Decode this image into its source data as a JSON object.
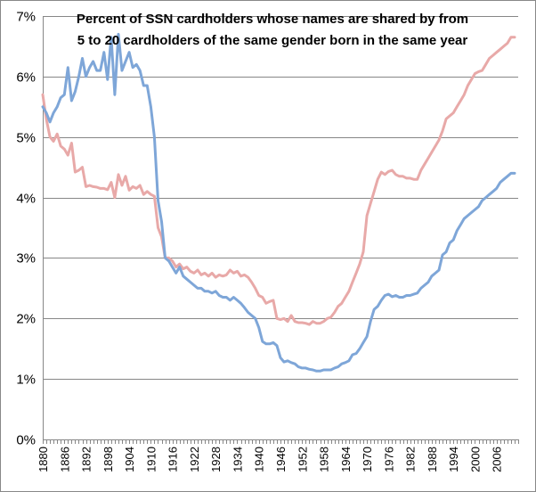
{
  "chart_data": {
    "type": "line",
    "title_lines": [
      "Percent of SSN cardholders whose names are shared by from",
      "5 to 20 cardholders of the same gender born in the same year"
    ],
    "xlabel": "",
    "ylabel": "",
    "xlim": [
      1880,
      2012
    ],
    "ylim": [
      0,
      7
    ],
    "y_ticks": [
      0,
      1,
      2,
      3,
      4,
      5,
      6,
      7
    ],
    "y_tick_labels": [
      "0%",
      "1%",
      "2%",
      "3%",
      "4%",
      "5%",
      "6%",
      "7%"
    ],
    "x_tick_labels": [
      "1880",
      "1886",
      "1892",
      "1898",
      "1904",
      "1910",
      "1916",
      "1922",
      "1928",
      "1934",
      "1940",
      "1946",
      "1952",
      "1958",
      "1964",
      "1970",
      "1976",
      "1982",
      "1988",
      "1994",
      "2000",
      "2006"
    ],
    "grid": true,
    "legend": "none",
    "series": [
      {
        "color": "#e8a9a8",
        "x": [
          1880,
          1881,
          1882,
          1883,
          1884,
          1885,
          1886,
          1887,
          1888,
          1889,
          1890,
          1891,
          1892,
          1893,
          1894,
          1895,
          1896,
          1897,
          1898,
          1899,
          1900,
          1901,
          1902,
          1903,
          1904,
          1905,
          1906,
          1907,
          1908,
          1909,
          1910,
          1911,
          1912,
          1913,
          1914,
          1915,
          1916,
          1917,
          1918,
          1919,
          1920,
          1921,
          1922,
          1923,
          1924,
          1925,
          1926,
          1927,
          1928,
          1929,
          1930,
          1931,
          1932,
          1933,
          1934,
          1935,
          1936,
          1937,
          1938,
          1939,
          1940,
          1941,
          1942,
          1943,
          1944,
          1945,
          1946,
          1947,
          1948,
          1949,
          1950,
          1951,
          1952,
          1953,
          1954,
          1955,
          1956,
          1957,
          1958,
          1959,
          1960,
          1961,
          1962,
          1963,
          1964,
          1965,
          1966,
          1967,
          1968,
          1969,
          1970,
          1971,
          1972,
          1973,
          1974,
          1975,
          1976,
          1977,
          1978,
          1979,
          1980,
          1981,
          1982,
          1983,
          1984,
          1985,
          1986,
          1987,
          1988,
          1989,
          1990,
          1991,
          1992,
          1993,
          1994,
          1995,
          1996,
          1997,
          1998,
          1999,
          2000,
          2001,
          2002,
          2003,
          2004,
          2005,
          2006,
          2007,
          2008,
          2009,
          2010,
          2011
        ],
        "values": [
          5.7,
          5.3,
          5.0,
          4.93,
          5.05,
          4.85,
          4.8,
          4.7,
          4.9,
          4.42,
          4.45,
          4.5,
          4.18,
          4.2,
          4.18,
          4.17,
          4.15,
          4.15,
          4.13,
          4.25,
          4.0,
          4.38,
          4.2,
          4.35,
          4.12,
          4.18,
          4.15,
          4.2,
          4.05,
          4.1,
          4.05,
          4.02,
          3.5,
          3.35,
          3.0,
          3.0,
          2.95,
          2.85,
          2.9,
          2.82,
          2.85,
          2.78,
          2.75,
          2.8,
          2.72,
          2.75,
          2.7,
          2.75,
          2.68,
          2.72,
          2.7,
          2.72,
          2.8,
          2.75,
          2.78,
          2.7,
          2.72,
          2.68,
          2.6,
          2.5,
          2.38,
          2.35,
          2.25,
          2.28,
          2.3,
          2.0,
          1.98,
          2.0,
          1.95,
          2.05,
          1.95,
          1.93,
          1.93,
          1.92,
          1.9,
          1.95,
          1.92,
          1.92,
          1.95,
          2.0,
          2.02,
          2.1,
          2.2,
          2.25,
          2.35,
          2.45,
          2.6,
          2.75,
          2.9,
          3.1,
          3.7,
          3.9,
          4.1,
          4.3,
          4.42,
          4.38,
          4.43,
          4.45,
          4.38,
          4.35,
          4.35,
          4.32,
          4.32,
          4.3,
          4.3,
          4.45,
          4.55,
          4.65,
          4.75,
          4.85,
          4.95,
          5.1,
          5.3,
          5.35,
          5.4,
          5.5,
          5.6,
          5.7,
          5.85,
          5.95,
          6.05,
          6.08,
          6.1,
          6.2,
          6.3,
          6.35,
          6.4,
          6.45,
          6.5,
          6.55,
          6.65,
          6.65
        ]
      },
      {
        "color": "#7ea6d8",
        "x": [
          1880,
          1881,
          1882,
          1883,
          1884,
          1885,
          1886,
          1887,
          1888,
          1889,
          1890,
          1891,
          1892,
          1893,
          1894,
          1895,
          1896,
          1897,
          1898,
          1899,
          1900,
          1901,
          1902,
          1903,
          1904,
          1905,
          1906,
          1907,
          1908,
          1909,
          1910,
          1911,
          1912,
          1913,
          1914,
          1915,
          1916,
          1917,
          1918,
          1919,
          1920,
          1921,
          1922,
          1923,
          1924,
          1925,
          1926,
          1927,
          1928,
          1929,
          1930,
          1931,
          1932,
          1933,
          1934,
          1935,
          1936,
          1937,
          1938,
          1939,
          1940,
          1941,
          1942,
          1943,
          1944,
          1945,
          1946,
          1947,
          1948,
          1949,
          1950,
          1951,
          1952,
          1953,
          1954,
          1955,
          1956,
          1957,
          1958,
          1959,
          1960,
          1961,
          1962,
          1963,
          1964,
          1965,
          1966,
          1967,
          1968,
          1969,
          1970,
          1971,
          1972,
          1973,
          1974,
          1975,
          1976,
          1977,
          1978,
          1979,
          1980,
          1981,
          1982,
          1983,
          1984,
          1985,
          1986,
          1987,
          1988,
          1989,
          1990,
          1991,
          1992,
          1993,
          1994,
          1995,
          1996,
          1997,
          1998,
          1999,
          2000,
          2001,
          2002,
          2003,
          2004,
          2005,
          2006,
          2007,
          2008,
          2009,
          2010,
          2011
        ],
        "values": [
          5.5,
          5.4,
          5.25,
          5.4,
          5.5,
          5.65,
          5.7,
          6.15,
          5.6,
          5.75,
          6.0,
          6.3,
          6.0,
          6.15,
          6.25,
          6.1,
          6.1,
          6.4,
          5.95,
          6.65,
          5.7,
          6.7,
          6.1,
          6.25,
          6.4,
          6.15,
          6.2,
          6.1,
          5.85,
          5.85,
          5.5,
          5.0,
          3.95,
          3.6,
          3.0,
          2.95,
          2.85,
          2.75,
          2.85,
          2.7,
          2.65,
          2.6,
          2.55,
          2.5,
          2.5,
          2.45,
          2.45,
          2.42,
          2.45,
          2.38,
          2.35,
          2.35,
          2.3,
          2.35,
          2.3,
          2.25,
          2.18,
          2.1,
          2.05,
          2.0,
          1.85,
          1.62,
          1.58,
          1.58,
          1.6,
          1.55,
          1.35,
          1.28,
          1.3,
          1.27,
          1.25,
          1.2,
          1.18,
          1.18,
          1.16,
          1.15,
          1.13,
          1.13,
          1.15,
          1.15,
          1.15,
          1.18,
          1.2,
          1.25,
          1.27,
          1.3,
          1.4,
          1.42,
          1.5,
          1.6,
          1.7,
          1.95,
          2.15,
          2.2,
          2.3,
          2.38,
          2.4,
          2.36,
          2.38,
          2.35,
          2.35,
          2.38,
          2.38,
          2.4,
          2.42,
          2.5,
          2.55,
          2.6,
          2.7,
          2.75,
          2.8,
          3.05,
          3.1,
          3.25,
          3.3,
          3.45,
          3.55,
          3.65,
          3.7,
          3.75,
          3.8,
          3.85,
          3.95,
          4.0,
          4.05,
          4.1,
          4.15,
          4.25,
          4.3,
          4.35,
          4.4,
          4.4
        ]
      }
    ]
  }
}
